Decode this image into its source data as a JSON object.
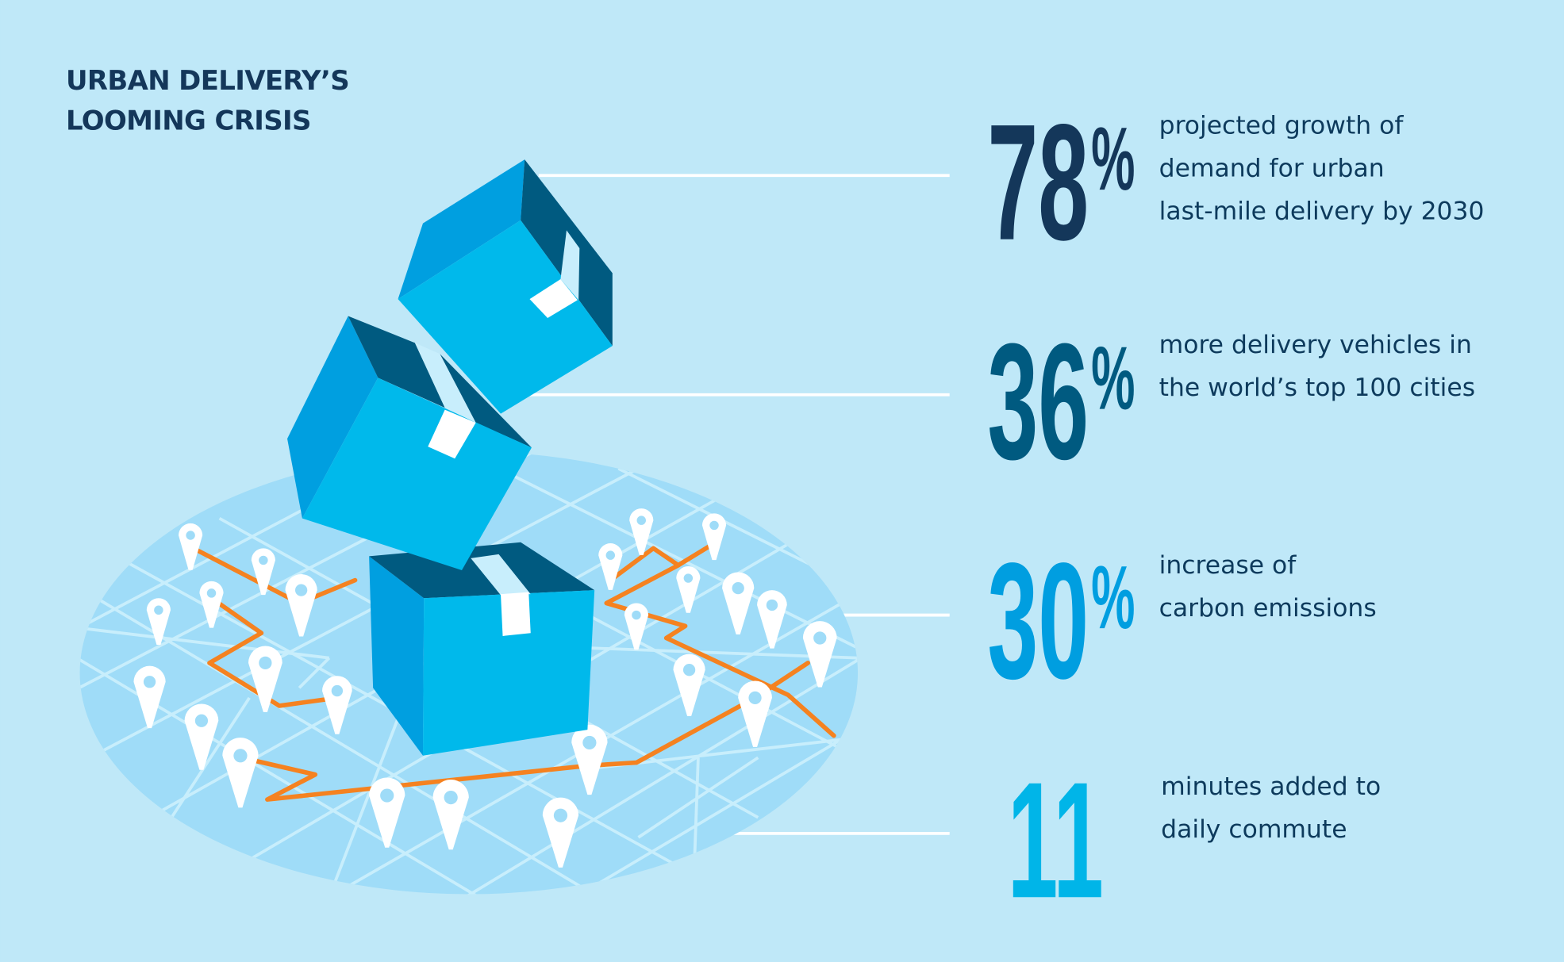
{
  "title": {
    "line1": "URBAN DELIVERY’S",
    "line2": "LOOMING CRISIS"
  },
  "stats": [
    {
      "value": "78",
      "unit": "%",
      "color": "#14375a",
      "lines": [
        "projected growth of",
        "demand for urban",
        "last-mile delivery by 2030"
      ]
    },
    {
      "value": "36",
      "unit": "%",
      "color": "#005a80",
      "lines": [
        "more delivery vehicles in",
        "the world’s top 100 cities"
      ]
    },
    {
      "value": "30",
      "unit": "%",
      "color": "#009ee0",
      "lines": [
        "increase of",
        "carbon emissions"
      ]
    },
    {
      "value": "11",
      "unit": "",
      "color": "#00b5e8",
      "lines": [
        "minutes added to",
        "daily commute"
      ]
    }
  ],
  "colors": {
    "background": "#bfe8f8",
    "map": "#9fdcf8",
    "streets": "#c8eefc",
    "route": "#f58220",
    "box_light": "#00b9eb",
    "box_mid": "#009fe0",
    "box_dark": "#005a80",
    "tape": "#ffffff",
    "pin": "#ffffff"
  },
  "icons": {
    "pin": "map-pin-icon",
    "box": "package-box-icon"
  }
}
